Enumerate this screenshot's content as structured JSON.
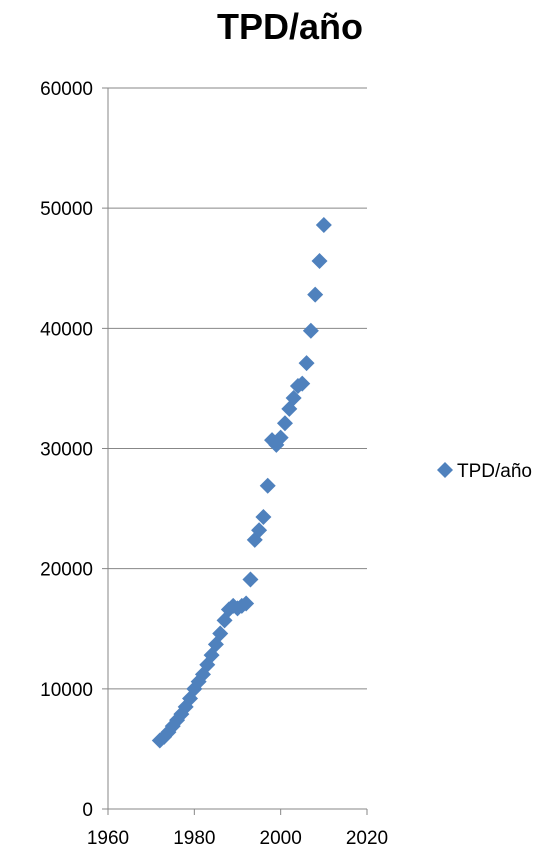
{
  "chart_data": {
    "type": "scatter",
    "title": "TPD/año",
    "xlabel": "",
    "ylabel": "",
    "xlim": [
      1960,
      2020
    ],
    "ylim": [
      0,
      60000
    ],
    "x_ticks": [
      1960,
      1980,
      2000,
      2020
    ],
    "y_ticks": [
      0,
      10000,
      20000,
      30000,
      40000,
      50000,
      60000
    ],
    "grid": "horizontal major gridlines",
    "legend_position": "right",
    "series": [
      {
        "name": "TPD/año",
        "color": "#4F81BD",
        "marker": "diamond",
        "points": [
          {
            "x": 1972,
            "y": 5700
          },
          {
            "x": 1973,
            "y": 6000
          },
          {
            "x": 1974,
            "y": 6400
          },
          {
            "x": 1975,
            "y": 6900
          },
          {
            "x": 1976,
            "y": 7400
          },
          {
            "x": 1977,
            "y": 7900
          },
          {
            "x": 1978,
            "y": 8500
          },
          {
            "x": 1979,
            "y": 9200
          },
          {
            "x": 1980,
            "y": 10000
          },
          {
            "x": 1981,
            "y": 10600
          },
          {
            "x": 1982,
            "y": 11200
          },
          {
            "x": 1983,
            "y": 12000
          },
          {
            "x": 1984,
            "y": 12800
          },
          {
            "x": 1985,
            "y": 13700
          },
          {
            "x": 1986,
            "y": 14600
          },
          {
            "x": 1987,
            "y": 15700
          },
          {
            "x": 1988,
            "y": 16600
          },
          {
            "x": 1989,
            "y": 16900
          },
          {
            "x": 1990,
            "y": 16700
          },
          {
            "x": 1991,
            "y": 16900
          },
          {
            "x": 1992,
            "y": 17100
          },
          {
            "x": 1993,
            "y": 19100
          },
          {
            "x": 1994,
            "y": 22400
          },
          {
            "x": 1995,
            "y": 23200
          },
          {
            "x": 1996,
            "y": 24300
          },
          {
            "x": 1997,
            "y": 26900
          },
          {
            "x": 1998,
            "y": 30700
          },
          {
            "x": 1999,
            "y": 30300
          },
          {
            "x": 2000,
            "y": 30900
          },
          {
            "x": 2001,
            "y": 32100
          },
          {
            "x": 2002,
            "y": 33300
          },
          {
            "x": 2003,
            "y": 34200
          },
          {
            "x": 2004,
            "y": 35200
          },
          {
            "x": 2005,
            "y": 35400
          },
          {
            "x": 2006,
            "y": 37100
          },
          {
            "x": 2007,
            "y": 39800
          },
          {
            "x": 2008,
            "y": 42800
          },
          {
            "x": 2009,
            "y": 45600
          },
          {
            "x": 2010,
            "y": 48600
          }
        ]
      }
    ]
  }
}
